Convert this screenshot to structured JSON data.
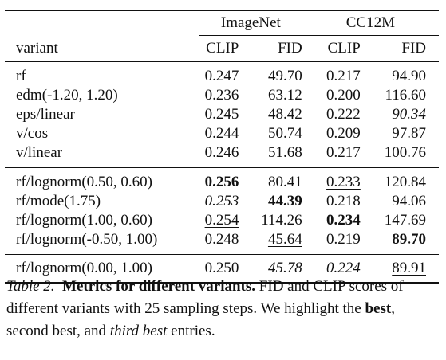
{
  "table": {
    "groups": [
      "ImageNet",
      "CC12M"
    ],
    "headers": [
      "variant",
      "CLIP",
      "FID",
      "CLIP",
      "FID"
    ],
    "blocks": [
      [
        [
          "rf",
          "0.247",
          "49.70",
          "0.217",
          "94.90"
        ],
        [
          "edm(-1.20, 1.20)",
          "0.236",
          "63.12",
          "0.200",
          "116.60"
        ],
        [
          "eps/linear",
          "0.245",
          "48.42",
          "0.222",
          "90.34"
        ],
        [
          "v/cos",
          "0.244",
          "50.74",
          "0.209",
          "97.87"
        ],
        [
          "v/linear",
          "0.246",
          "51.68",
          "0.217",
          "100.76"
        ]
      ],
      [
        [
          "rf/lognorm(0.50, 0.60)",
          "0.256",
          "80.41",
          "0.233",
          "120.84"
        ],
        [
          "rf/mode(1.75)",
          "0.253",
          "44.39",
          "0.218",
          "94.06"
        ],
        [
          "rf/lognorm(1.00, 0.60)",
          "0.254",
          "114.26",
          "0.234",
          "147.69"
        ],
        [
          "rf/lognorm(-0.50, 1.00)",
          "0.248",
          "45.64",
          "0.219",
          "89.70"
        ]
      ],
      [
        [
          "rf/lognorm(0.00, 1.00)",
          "0.250",
          "45.78",
          "0.224",
          "89.91"
        ]
      ]
    ]
  },
  "caption": {
    "table_number": "Table 2.",
    "title": "Metrics for different variants.",
    "text_1": "FID and CLIP scores of different variants with 25 sampling steps. We highlight the",
    "best": "best",
    "sep_1": ",",
    "second_best": "second best",
    "sep_2": ", and",
    "third_best": "third best",
    "text_2": "entries."
  }
}
